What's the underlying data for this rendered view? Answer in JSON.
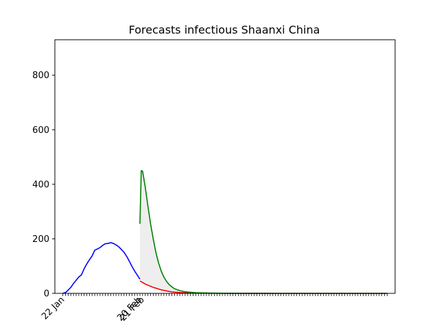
{
  "chart_data": {
    "type": "line",
    "title": "Forecasts infectious Shaanxi China",
    "xlabel": "",
    "ylabel": "",
    "x_unit": "days",
    "xlim": [
      -3,
      125
    ],
    "ylim": [
      0,
      930
    ],
    "yticks": [
      0,
      200,
      400,
      600,
      800
    ],
    "x_tick_count": 123,
    "x_tick_labels": [
      {
        "x": 0,
        "label": "22 Jan"
      },
      {
        "x": 29,
        "label": "20 Feb"
      },
      {
        "x": 30,
        "label": "21 Feb"
      }
    ],
    "grid": false,
    "legend": "none",
    "colors": {
      "observed": "#0000ff",
      "forecast_low": "#ff0000",
      "forecast_high": "#008000",
      "band": "#eeeeee"
    },
    "series": [
      {
        "x": [
          0,
          1,
          2,
          3,
          4,
          5,
          6,
          7,
          8,
          9,
          10,
          11,
          12,
          13,
          14,
          15,
          16,
          17,
          18,
          19,
          20,
          21,
          22,
          23,
          24,
          25,
          26,
          27,
          28,
          29
        ],
        "y": [
          0,
          3,
          12,
          22,
          36,
          48,
          60,
          68,
          90,
          108,
          123,
          137,
          158,
          163,
          168,
          176,
          182,
          183,
          186,
          183,
          178,
          171,
          161,
          151,
          136,
          118,
          99,
          82,
          67,
          52
        ]
      },
      {
        "x": [
          29,
          30,
          31,
          32,
          33,
          34,
          35,
          36,
          37,
          38,
          39,
          40,
          41,
          42,
          44,
          46,
          48,
          50,
          55,
          60,
          70,
          80,
          100,
          122
        ],
        "y": [
          45,
          40,
          34,
          30,
          26,
          22,
          19,
          16,
          13,
          11,
          9,
          7,
          5.5,
          4.5,
          3,
          2,
          1.5,
          1,
          0.5,
          0.3,
          0.1,
          0,
          0,
          0
        ]
      },
      {
        "x": [
          29,
          29.5,
          30,
          31,
          32,
          33,
          34,
          35,
          36,
          37,
          38,
          39,
          40,
          41,
          42,
          44,
          46,
          48,
          50,
          55,
          60,
          70,
          80,
          100,
          122
        ],
        "y": [
          255,
          450,
          448,
          390,
          320,
          255,
          200,
          150,
          112,
          82,
          60,
          44,
          32,
          24,
          17,
          10,
          6,
          4,
          2.5,
          1,
          0.5,
          0.2,
          0,
          0,
          0
        ]
      }
    ]
  }
}
